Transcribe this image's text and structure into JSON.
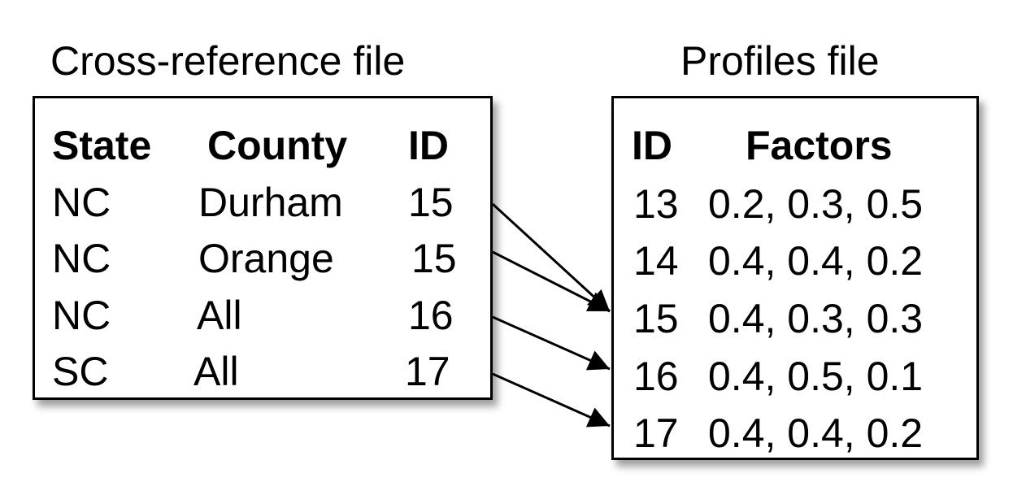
{
  "cross_reference": {
    "title": "Cross-reference file",
    "headers": {
      "state": "State",
      "county": "County",
      "id": "ID"
    },
    "rows": [
      {
        "state": "NC",
        "county": "Durham",
        "id": "15"
      },
      {
        "state": "NC",
        "county": "Orange",
        "id": "15"
      },
      {
        "state": "NC",
        "county": "All",
        "id": "16"
      },
      {
        "state": "SC",
        "county": "All",
        "id": "17"
      }
    ]
  },
  "profiles": {
    "title": "Profiles file",
    "headers": {
      "id": "ID",
      "factors": "Factors"
    },
    "rows": [
      {
        "id": "13",
        "factors": "0.2, 0.3, 0.5"
      },
      {
        "id": "14",
        "factors": "0.4, 0.4, 0.2"
      },
      {
        "id": "15",
        "factors": "0.4, 0.3, 0.3"
      },
      {
        "id": "16",
        "factors": "0.4, 0.5, 0.1"
      },
      {
        "id": "17",
        "factors": "0.4, 0.4, 0.2"
      }
    ]
  },
  "links": [
    {
      "from_row": 0,
      "to_row": 2
    },
    {
      "from_row": 1,
      "to_row": 2
    },
    {
      "from_row": 2,
      "to_row": 3
    },
    {
      "from_row": 3,
      "to_row": 4
    }
  ]
}
